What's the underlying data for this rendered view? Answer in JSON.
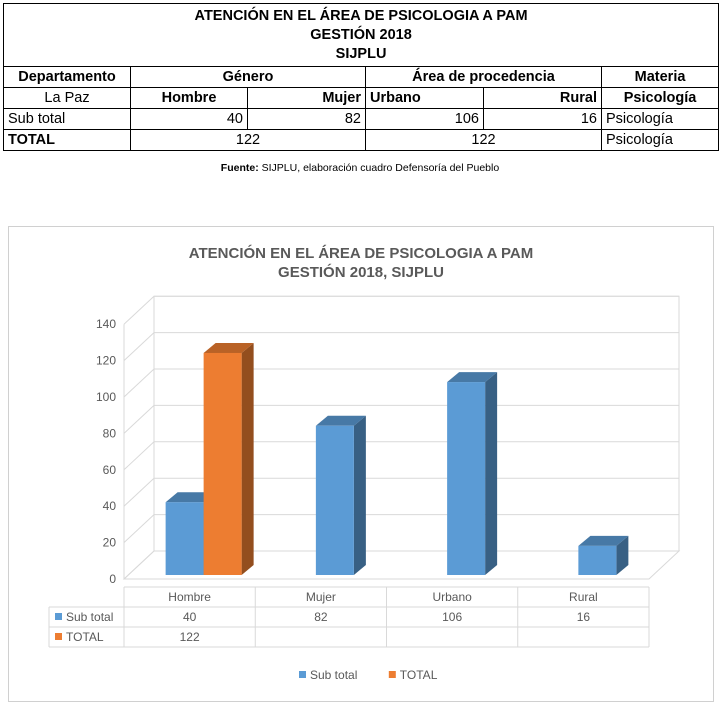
{
  "table": {
    "title_lines": [
      "ATENCIÓN EN EL ÁREA DE PSICOLOGIA A PAM",
      "GESTIÓN 2018",
      "SIJPLU"
    ],
    "header": {
      "departamento": "Departamento",
      "genero": "Género",
      "area": "Área de procedencia",
      "materia": "Materia"
    },
    "subheader": {
      "departamento": "La Paz",
      "hombre": "Hombre",
      "mujer": "Mujer",
      "urbano": "Urbano",
      "rural": "Rural",
      "materia": "Psicología"
    },
    "subtotal_row": {
      "label": "Sub total",
      "hombre": "40",
      "mujer": "82",
      "urbano": "106",
      "rural": "16",
      "materia": "Psicología"
    },
    "total_row": {
      "label": "TOTAL",
      "genero_total": "122",
      "area_total": "122",
      "materia": "Psicología"
    }
  },
  "source_note": {
    "label": "Fuente:",
    "text": " SIJPLU, elaboración cuadro Defensoría del Pueblo"
  },
  "chart_data": {
    "type": "bar",
    "title_lines": [
      "ATENCIÓN EN EL ÁREA DE PSICOLOGIA A PAM",
      "GESTIÓN 2018, SIJPLU"
    ],
    "categories": [
      "Hombre",
      "Mujer",
      "Urbano",
      "Rural"
    ],
    "series": [
      {
        "name": "Sub total",
        "values": [
          40,
          82,
          106,
          16
        ],
        "color": "#5b9bd5"
      },
      {
        "name": "TOTAL",
        "values": [
          122,
          null,
          null,
          null
        ],
        "color": "#ed7d31"
      }
    ],
    "ylim": [
      0,
      140
    ],
    "yticks": [
      0,
      20,
      40,
      60,
      80,
      100,
      120,
      140
    ],
    "grid": true,
    "legend": "bottom",
    "data_table": true
  }
}
